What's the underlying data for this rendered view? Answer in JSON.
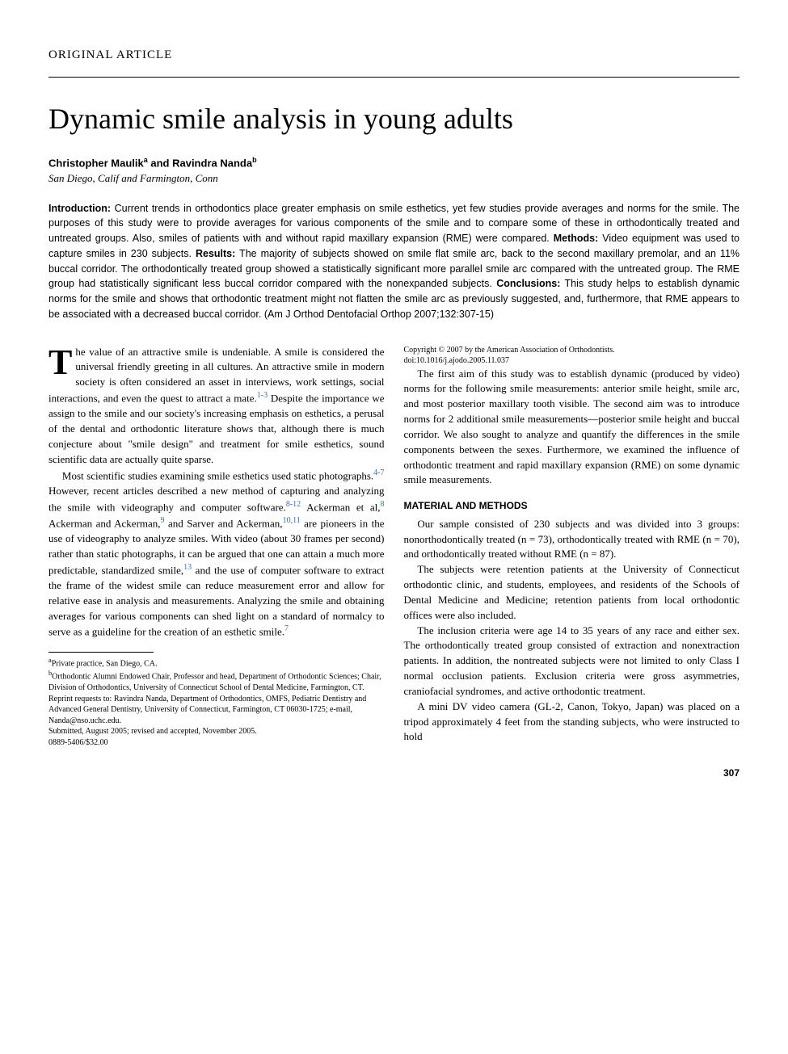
{
  "article_type": "ORIGINAL ARTICLE",
  "title": "Dynamic smile analysis in young adults",
  "authors_html": "Christopher Maulik<sup>a</sup> and Ravindra Nanda<sup>b</sup>",
  "affiliation": "San Diego, Calif and Farmington, Conn",
  "abstract": {
    "intro_label": "Introduction:",
    "intro": " Current trends in orthodontics place greater emphasis on smile esthetics, yet few studies provide averages and norms for the smile. The purposes of this study were to provide averages for various components of the smile and to compare some of these in orthodontically treated and untreated groups. Also, smiles of patients with and without rapid maxillary expansion (RME) were compared. ",
    "methods_label": "Methods:",
    "methods": " Video equipment was used to capture smiles in 230 subjects. ",
    "results_label": "Results:",
    "results": " The majority of subjects showed on smile flat smile arc, back to the second maxillary premolar, and an 11% buccal corridor. The orthodontically treated group showed a statistically significant more parallel smile arc compared with the untreated group. The RME group had statistically significant less buccal corridor compared with the nonexpanded subjects. ",
    "conclusions_label": "Conclusions:",
    "conclusions": " This study helps to establish dynamic norms for the smile and shows that orthodontic treatment might not flatten the smile arc as previously suggested, and, furthermore, that RME appears to be associated with a decreased buccal corridor. (Am J Orthod Dentofacial Orthop 2007;132:307-15)"
  },
  "body": {
    "p1_dropcap": "T",
    "p1": "he value of an attractive smile is undeniable. A smile is considered the universal friendly greeting in all cultures. An attractive smile in modern society is often considered an asset in interviews, work settings, social interactions, and even the quest to attract a mate.",
    "p1_ref": "1-3",
    "p1b": " Despite the importance we assign to the smile and our society's increasing emphasis on esthetics, a perusal of the dental and orthodontic literature shows that, although there is much conjecture about \"smile design\" and treatment for smile esthetics, sound scientific data are actually quite sparse.",
    "p2a": "Most scientific studies examining smile esthetics used static photographs.",
    "p2_ref1": "4-7",
    "p2b": " However, recent articles described a new method of capturing and analyzing the smile with videography and computer software.",
    "p2_ref2": "8-12",
    "p2c": " Ackerman et al,",
    "p2_ref3": "8",
    "p2d": " Ackerman and Ackerman,",
    "p2_ref4": "9",
    "p2e": " and Sarver and Ackerman,",
    "p2_ref5": "10,11",
    "p2f": " are pioneers in the use of videography to analyze smiles. With video (about 30 frames per second) rather than static photographs, it can be argued that one can attain a much more predictable, standardized smile,",
    "p2_ref6": "13",
    "p2g": " and the use of computer software to extract the frame of the widest smile can reduce measurement error and allow for relative ease in analysis and measurements. Analyzing the smile and obtaining averages for various components can shed light on a standard of normalcy to serve as a guideline for the creation of an esthetic smile.",
    "p2_ref7": "7",
    "p3": "The first aim of this study was to establish dynamic (produced by video) norms for the following smile measurements: anterior smile height, smile arc, and most posterior maxillary tooth visible. The second aim was to introduce norms for 2 additional smile measurements—posterior smile height and buccal corridor. We also sought to analyze and quantify the differences in the smile components between the sexes. Furthermore, we examined the influence of orthodontic treatment and rapid maxillary expansion (RME) on some dynamic smile measurements.",
    "section_head": "MATERIAL AND METHODS",
    "p4": "Our sample consisted of 230 subjects and was divided into 3 groups: nonorthodontically treated (n = 73), orthodontically treated with RME (n = 70), and orthodontically treated without RME (n = 87).",
    "p5": "The subjects were retention patients at the University of Connecticut orthodontic clinic, and students, employees, and residents of the Schools of Dental Medicine and Medicine; retention patients from local orthodontic offices were also included.",
    "p6": "The inclusion criteria were age 14 to 35 years of any race and either sex. The orthodontically treated group consisted of extraction and nonextraction patients. In addition, the nontreated subjects were not limited to only Class I normal occlusion patients. Exclusion criteria were gross asymmetries, craniofacial syndromes, and active orthodontic treatment.",
    "p7": "A mini DV video camera (GL-2, Canon, Tokyo, Japan) was placed on a tripod approximately 4 feet from the standing subjects, who were instructed to hold"
  },
  "footnotes": {
    "a": "Private practice, San Diego, CA.",
    "b": "Orthodontic Alumni Endowed Chair, Professor and head, Department of Orthodontic Sciences; Chair, Division of Orthodontics, University of Connecticut School of Dental Medicine, Farmington, CT.",
    "reprint": "Reprint requests to: Ravindra Nanda, Department of Orthodontics, OMFS, Pediatric Dentistry and Advanced General Dentistry, University of Connecticut, Farmington, CT 06030-1725; e-mail, Nanda@nso.uchc.edu.",
    "submitted": "Submitted, August 2005; revised and accepted, November 2005.",
    "issn": "0889-5406/$32.00",
    "copyright": "Copyright © 2007 by the American Association of Orthodontists.",
    "doi": "doi:10.1016/j.ajodo.2005.11.037"
  },
  "page_number": "307",
  "colors": {
    "ref_link": "#3a6fb7",
    "text": "#000000",
    "background": "#ffffff"
  },
  "typography": {
    "title_size_pt": 36,
    "body_size_pt": 13,
    "abstract_size_pt": 12.5,
    "footnote_size_pt": 10
  }
}
